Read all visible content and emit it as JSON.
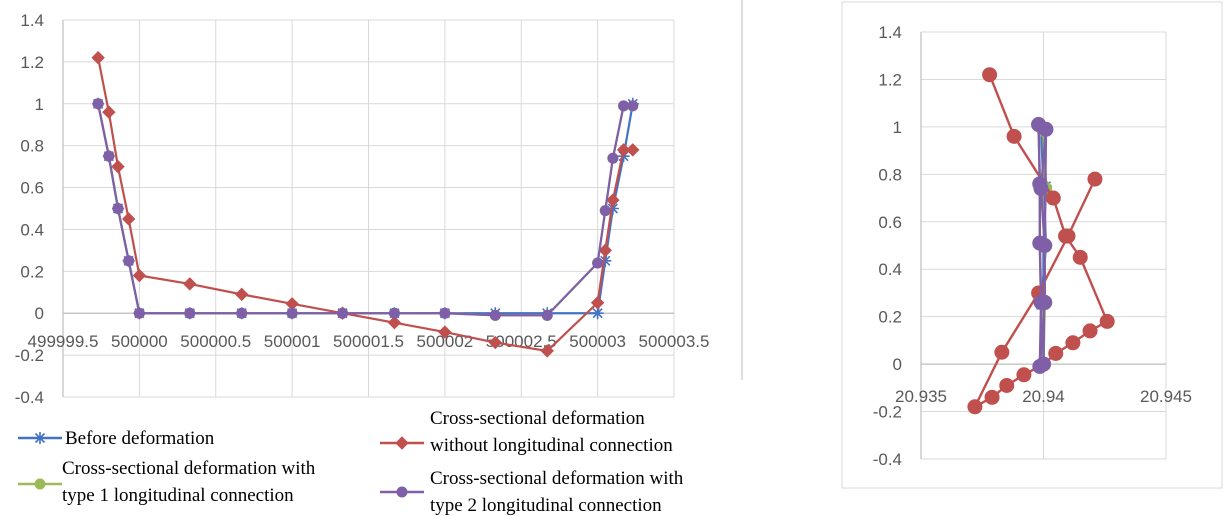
{
  "colors": {
    "before": "#4472C4",
    "without": "#C0504D",
    "type1": "#9BBB59",
    "type2": "#7F5FA8",
    "grid": "#D9D9D9",
    "axis": "#BFBFBF",
    "divider": "#BFBFBF",
    "tick_text": "#595959"
  },
  "chart_data": [
    {
      "type": "scatter",
      "title": "",
      "xlabel": "",
      "ylabel": "",
      "xlim": [
        499999.5,
        500003.5
      ],
      "ylim": [
        -0.4,
        1.4
      ],
      "grid": true,
      "legend": "bottom",
      "x_ticks": [
        499999.5,
        500000,
        500000.5,
        500001,
        500001.5,
        500002,
        500002.5,
        500003,
        500003.5
      ],
      "x_tick_labels": [
        "499999.5",
        "500000",
        "500000.5",
        "500001",
        "500001.5",
        "500002",
        "500002.5",
        "500003",
        "500003.5"
      ],
      "y_ticks": [
        -0.4,
        -0.2,
        0,
        0.2,
        0.4,
        0.6,
        0.8,
        1,
        1.2,
        1.4
      ],
      "y_tick_labels": [
        "-0.4",
        "-0.2",
        "0",
        "0.2",
        "0.4",
        "0.6",
        "0.8",
        "1",
        "1.2",
        "1.4"
      ],
      "series": [
        {
          "name": "Before deformation",
          "key": "before",
          "marker": "star",
          "x": [
            499999.73,
            499999.8,
            499999.86,
            499999.93,
            500000.0,
            500000.33,
            500000.67,
            500001.0,
            500001.33,
            500001.67,
            500002.0,
            500002.33,
            500002.67,
            500003.0,
            500003.05,
            500003.1,
            500003.17,
            500003.23
          ],
          "y": [
            1.0,
            0.75,
            0.5,
            0.25,
            0.0,
            0.0,
            0.0,
            0.0,
            0.0,
            0.0,
            0.0,
            0.0,
            0.0,
            0.0,
            0.25,
            0.5,
            0.75,
            1.0
          ]
        },
        {
          "name": "Cross-sectional deformation without longitudinal connection",
          "key": "without",
          "marker": "diamond",
          "x": [
            499999.73,
            499999.8,
            499999.86,
            499999.93,
            500000.0,
            500000.33,
            500000.67,
            500001.0,
            500001.33,
            500001.67,
            500002.0,
            500002.33,
            500002.67,
            500003.0,
            500003.05,
            500003.1,
            500003.17,
            500003.23
          ],
          "y": [
            1.22,
            0.96,
            0.7,
            0.45,
            0.18,
            0.14,
            0.09,
            0.045,
            0.0,
            -0.045,
            -0.09,
            -0.14,
            -0.18,
            0.05,
            0.3,
            0.54,
            0.78,
            0.78
          ]
        },
        {
          "name": "Cross-sectional deformation with type 1 longitudinal connection",
          "key": "type1",
          "marker": "circle",
          "x": [
            499999.73,
            499999.8,
            499999.86,
            499999.93,
            500000.0,
            500000.33,
            500000.67,
            500001.0,
            500001.33,
            500001.67,
            500002.0,
            500002.33,
            500002.67,
            500003.0,
            500003.05,
            500003.1,
            500003.17,
            500003.23
          ],
          "y": [
            1.0,
            0.75,
            0.5,
            0.25,
            0.0,
            0.0,
            0.0,
            0.0,
            0.0,
            0.0,
            0.0,
            -0.01,
            -0.01,
            0.24,
            0.49,
            0.74,
            0.99,
            0.99
          ]
        },
        {
          "name": "Cross-sectional deformation with type 2 longitudinal connection",
          "key": "type2",
          "marker": "circle",
          "x": [
            499999.73,
            499999.8,
            499999.86,
            499999.93,
            500000.0,
            500000.33,
            500000.67,
            500001.0,
            500001.33,
            500001.67,
            500002.0,
            500002.33,
            500002.67,
            500003.0,
            500003.05,
            500003.1,
            500003.17,
            500003.23
          ],
          "y": [
            1.0,
            0.75,
            0.5,
            0.25,
            0.0,
            0.0,
            0.0,
            0.0,
            0.0,
            0.0,
            0.0,
            -0.01,
            -0.01,
            0.24,
            0.49,
            0.74,
            0.99,
            0.99
          ]
        }
      ]
    },
    {
      "type": "scatter",
      "title": "",
      "xlabel": "",
      "ylabel": "",
      "xlim": [
        20.935,
        20.945
      ],
      "ylim": [
        -0.4,
        1.4
      ],
      "grid": true,
      "legend": "none",
      "x_ticks": [
        20.935,
        20.94,
        20.945
      ],
      "x_tick_labels": [
        "20.935",
        "20.94",
        "20.945"
      ],
      "y_ticks": [
        -0.4,
        -0.2,
        0,
        0.2,
        0.4,
        0.6,
        0.8,
        1,
        1.2,
        1.4
      ],
      "y_tick_labels": [
        "-0.4",
        "-0.2",
        "0",
        "0.2",
        "0.4",
        "0.6",
        "0.8",
        "1",
        "1.2",
        "1.4"
      ],
      "series": [
        {
          "key": "before",
          "marker": "star",
          "x": [
            20.9399,
            20.94,
            20.9401,
            20.9399,
            20.94,
            20.94,
            20.94,
            20.9401,
            20.94
          ],
          "y": [
            1.0,
            0.75,
            0.5,
            0.25,
            0.0,
            0.25,
            0.5,
            0.75,
            1.0
          ]
        },
        {
          "key": "without",
          "marker": "circle",
          "x": [
            20.9378,
            20.9388,
            20.9404,
            20.9409,
            20.9415,
            20.9426,
            20.9419,
            20.9412,
            20.9405,
            20.94,
            20.9392,
            20.9385,
            20.9379,
            20.9372,
            20.9383,
            20.9398,
            20.941,
            20.9421
          ],
          "y": [
            1.22,
            0.96,
            0.7,
            0.54,
            0.45,
            0.18,
            0.14,
            0.09,
            0.045,
            0.0,
            -0.045,
            -0.09,
            -0.14,
            -0.18,
            0.05,
            0.3,
            0.54,
            0.78
          ]
        },
        {
          "key": "type1",
          "marker": "circle",
          "x": [
            20.9398,
            20.93985,
            20.93985,
            20.9399,
            20.94,
            20.94005,
            20.94005,
            20.94005,
            20.94
          ],
          "y": [
            1.01,
            0.76,
            0.51,
            0.26,
            0.0,
            0.26,
            0.5,
            0.74,
            0.99
          ]
        },
        {
          "key": "type2",
          "marker": "circle",
          "x": [
            20.9398,
            20.93985,
            20.93985,
            20.9399,
            20.93985,
            20.94005,
            20.94005,
            20.9399,
            20.9401,
            20.94
          ],
          "y": [
            1.01,
            0.76,
            0.51,
            0.26,
            -0.01,
            0.26,
            0.5,
            0.74,
            0.99,
            0.0
          ]
        }
      ]
    }
  ]
}
